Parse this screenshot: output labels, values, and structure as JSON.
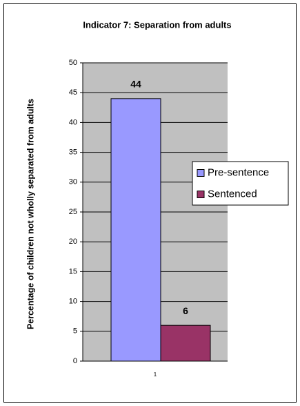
{
  "chart_data": {
    "type": "bar",
    "title": "Indicator 7: Separation from adults",
    "y_label": "Percentage of children not wholly separated from adults",
    "categories": [
      "1"
    ],
    "series": [
      {
        "name": "Pre-sentence",
        "color": "#9999ff",
        "values": [
          44
        ]
      },
      {
        "name": "Sentenced",
        "color": "#993366",
        "values": [
          6
        ]
      }
    ],
    "ylim": [
      0,
      50
    ],
    "yticks": [
      0,
      5,
      10,
      15,
      20,
      25,
      30,
      35,
      40,
      45,
      50
    ],
    "grid": true,
    "plot_background": "#c0c0c0",
    "legend": "right"
  }
}
